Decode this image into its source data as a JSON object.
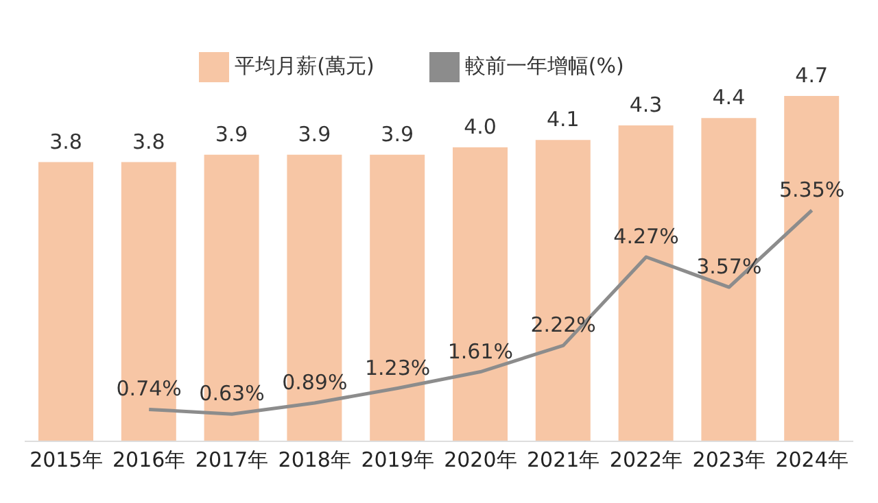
{
  "chart_data": {
    "type": "bar",
    "categories": [
      "2015年",
      "2016年",
      "2017年",
      "2018年",
      "2019年",
      "2020年",
      "2021年",
      "2022年",
      "2023年",
      "2024年"
    ],
    "series": [
      {
        "name": "平均月薪(萬元)",
        "color": "#f7c6a5",
        "values": [
          3.8,
          3.8,
          3.9,
          3.9,
          3.9,
          4.0,
          4.1,
          4.3,
          4.4,
          4.7
        ],
        "value_labels": [
          "3.8",
          "3.8",
          "3.9",
          "3.9",
          "3.9",
          "4.0",
          "4.1",
          "4.3",
          "4.4",
          "4.7"
        ]
      },
      {
        "name": "較前一年增幅(%)",
        "type": "line",
        "axis": "y2",
        "color": "#8c8c8c",
        "values": [
          null,
          0.74,
          0.63,
          0.89,
          1.23,
          1.61,
          2.22,
          4.27,
          3.57,
          5.35
        ],
        "value_labels": [
          null,
          "0.74%",
          "0.63%",
          "0.89%",
          "1.23%",
          "1.61%",
          "2.22%",
          "4.27%",
          "3.57%",
          "5.35%"
        ]
      }
    ],
    "tick_labels": "x",
    "legend": "top",
    "marker": "none",
    "line_style": "solid"
  }
}
